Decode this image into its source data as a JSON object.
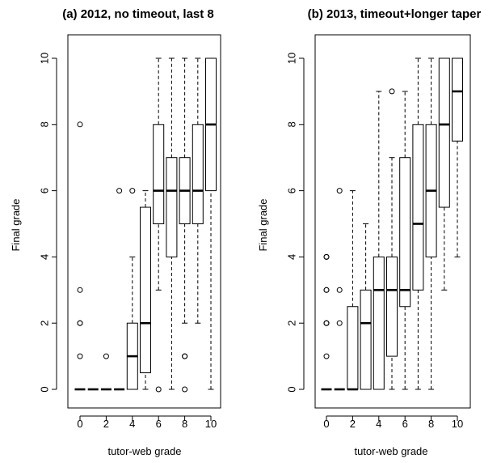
{
  "chart_data": [
    {
      "type": "box",
      "title": "(a) 2012, no timeout, last 8",
      "xlabel": "tutor-web grade",
      "ylabel": "Final grade",
      "xlim": [
        -0.5,
        10.5
      ],
      "ylim": [
        0,
        10
      ],
      "x_ticks": [
        0,
        2,
        4,
        6,
        8,
        10
      ],
      "y_ticks": [
        0,
        2,
        4,
        6,
        8,
        10
      ],
      "boxes": [
        {
          "x": 0,
          "whislo": 0,
          "q1": 0,
          "med": 0,
          "q3": 0,
          "whishi": 0,
          "fliers": [
            1,
            2,
            2,
            3,
            8
          ]
        },
        {
          "x": 1,
          "whislo": 0,
          "q1": 0,
          "med": 0,
          "q3": 0,
          "whishi": 0,
          "fliers": []
        },
        {
          "x": 2,
          "whislo": 0,
          "q1": 0,
          "med": 0,
          "q3": 0,
          "whishi": 0,
          "fliers": [
            1
          ]
        },
        {
          "x": 3,
          "whislo": 0,
          "q1": 0,
          "med": 0,
          "q3": 0,
          "whishi": 0,
          "fliers": [
            6
          ]
        },
        {
          "x": 4,
          "whislo": 0,
          "q1": 0,
          "med": 1,
          "q3": 2,
          "whishi": 4,
          "fliers": [
            6
          ]
        },
        {
          "x": 5,
          "whislo": 0,
          "q1": 0.5,
          "med": 2,
          "q3": 5.5,
          "whishi": 6,
          "fliers": []
        },
        {
          "x": 6,
          "whislo": 3,
          "q1": 5,
          "med": 6,
          "q3": 8,
          "whishi": 10,
          "fliers": [
            0
          ]
        },
        {
          "x": 7,
          "whislo": 0,
          "q1": 4,
          "med": 6,
          "q3": 7,
          "whishi": 10,
          "fliers": []
        },
        {
          "x": 8,
          "whislo": 2,
          "q1": 5,
          "med": 6,
          "q3": 7,
          "whishi": 10,
          "fliers": [
            0,
            1,
            1
          ]
        },
        {
          "x": 9,
          "whislo": 2,
          "q1": 5,
          "med": 6,
          "q3": 8,
          "whishi": 10,
          "fliers": []
        },
        {
          "x": 10,
          "whislo": 0,
          "q1": 6,
          "med": 8,
          "q3": 10,
          "whishi": 10,
          "fliers": []
        }
      ]
    },
    {
      "type": "box",
      "title": "(b) 2013, timeout+longer taper",
      "xlabel": "tutor-web grade",
      "ylabel": "Final grade",
      "xlim": [
        -0.5,
        10.5
      ],
      "ylim": [
        0,
        10
      ],
      "x_ticks": [
        0,
        2,
        4,
        6,
        8,
        10
      ],
      "y_ticks": [
        0,
        2,
        4,
        6,
        8,
        10
      ],
      "boxes": [
        {
          "x": 0,
          "whislo": 0,
          "q1": 0,
          "med": 0,
          "q3": 0,
          "whishi": 0,
          "fliers": [
            1,
            2,
            2,
            2,
            3,
            3,
            4,
            4
          ]
        },
        {
          "x": 1,
          "whislo": 0,
          "q1": 0,
          "med": 0,
          "q3": 0,
          "whishi": 0,
          "fliers": [
            2,
            3,
            6
          ]
        },
        {
          "x": 2,
          "whislo": 0,
          "q1": 0,
          "med": 0,
          "q3": 2.5,
          "whishi": 6,
          "fliers": []
        },
        {
          "x": 3,
          "whislo": 0,
          "q1": 0,
          "med": 2,
          "q3": 3,
          "whishi": 5,
          "fliers": []
        },
        {
          "x": 4,
          "whislo": 0,
          "q1": 0,
          "med": 3,
          "q3": 4,
          "whishi": 9,
          "fliers": []
        },
        {
          "x": 5,
          "whislo": 0,
          "q1": 1,
          "med": 3,
          "q3": 4,
          "whishi": 7,
          "fliers": [
            9
          ]
        },
        {
          "x": 6,
          "whislo": 0,
          "q1": 2.5,
          "med": 3,
          "q3": 7,
          "whishi": 9,
          "fliers": []
        },
        {
          "x": 7,
          "whislo": 0,
          "q1": 3,
          "med": 5,
          "q3": 8,
          "whishi": 10,
          "fliers": []
        },
        {
          "x": 8,
          "whislo": 0,
          "q1": 4,
          "med": 6,
          "q3": 8,
          "whishi": 10,
          "fliers": []
        },
        {
          "x": 9,
          "whislo": 3,
          "q1": 5.5,
          "med": 8,
          "q3": 10,
          "whishi": 10,
          "fliers": []
        },
        {
          "x": 10,
          "whislo": 4,
          "q1": 7.5,
          "med": 9,
          "q3": 10,
          "whishi": 10,
          "fliers": []
        }
      ]
    }
  ]
}
